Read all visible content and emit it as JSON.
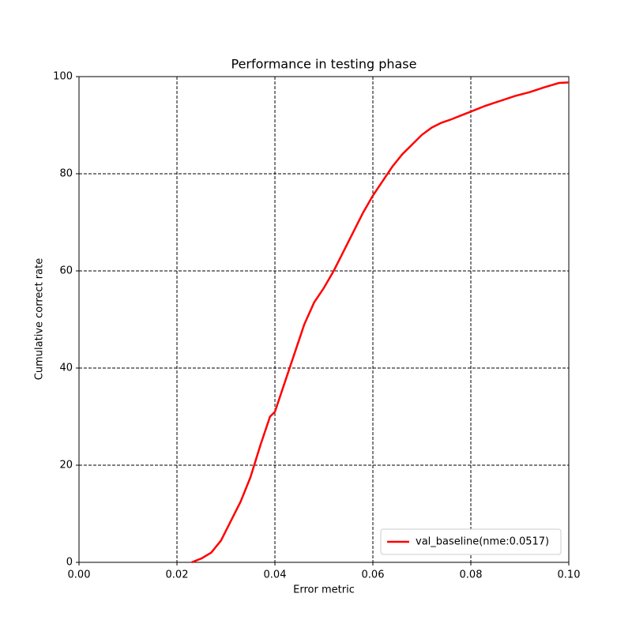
{
  "chart_data": {
    "type": "line",
    "title": "Performance in testing phase",
    "x_label": "Error metric",
    "y_label": "Cumulative correct rate",
    "x": [
      0.023,
      0.025,
      0.027,
      0.029,
      0.031,
      0.033,
      0.035,
      0.037,
      0.039,
      0.04,
      0.042,
      0.044,
      0.046,
      0.048,
      0.05,
      0.052,
      0.054,
      0.056,
      0.058,
      0.06,
      0.062,
      0.064,
      0.066,
      0.068,
      0.07,
      0.072,
      0.074,
      0.076,
      0.078,
      0.08,
      0.083,
      0.086,
      0.089,
      0.092,
      0.095,
      0.098,
      0.1
    ],
    "series": [
      {
        "name": "val_baseline(nme:0.0517)",
        "color": "#ff0000",
        "values": [
          0,
          0.8,
          2,
          4.5,
          8.5,
          12.5,
          17.5,
          24,
          30,
          31,
          37,
          43,
          49,
          53.5,
          56.5,
          60,
          64,
          68,
          72,
          75.5,
          78.5,
          81.5,
          84,
          86,
          88,
          89.5,
          90.5,
          91.2,
          92,
          92.8,
          94,
          95,
          96,
          96.8,
          97.8,
          98.7,
          98.8
        ]
      }
    ],
    "xlim": [
      0,
      0.1
    ],
    "ylim": [
      0,
      100
    ],
    "xticks": [
      {
        "value": 0,
        "label": "0.00"
      },
      {
        "value": 0.02,
        "label": "0.02"
      },
      {
        "value": 0.04,
        "label": "0.04"
      },
      {
        "value": 0.06,
        "label": "0.06"
      },
      {
        "value": 0.08,
        "label": "0.08"
      },
      {
        "value": 0.1,
        "label": "0.10"
      }
    ],
    "yticks": [
      0,
      20,
      40,
      60,
      80,
      100
    ],
    "grid": true,
    "legend": "lower right"
  }
}
